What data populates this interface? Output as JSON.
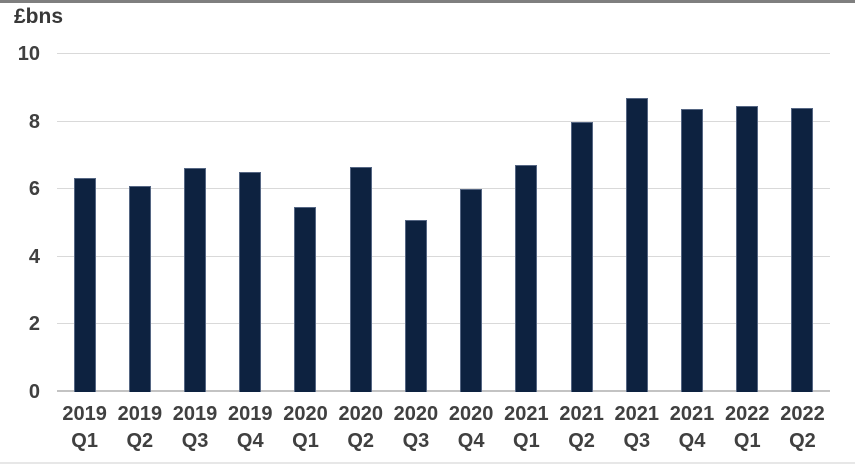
{
  "chart_data": {
    "type": "bar",
    "title": "£bns",
    "ylabel": "£bns",
    "xlabel": "",
    "categories": [
      "2019 Q1",
      "2019 Q2",
      "2019 Q3",
      "2019 Q4",
      "2020 Q1",
      "2020 Q2",
      "2020 Q3",
      "2020 Q4",
      "2021 Q1",
      "2021 Q2",
      "2021 Q3",
      "2021 Q4",
      "2022 Q1",
      "2022 Q2"
    ],
    "values": [
      6.33,
      6.1,
      6.62,
      6.5,
      5.47,
      6.66,
      5.08,
      6.0,
      6.72,
      8.0,
      8.71,
      8.37,
      8.47,
      8.41
    ],
    "ylim": [
      0,
      10
    ],
    "yticks": [
      0,
      2,
      4,
      6,
      8,
      10
    ],
    "grid": true,
    "legend": "none",
    "colors": {
      "bar_fill": "#0d2240",
      "gridline": "#d9d9d9",
      "axis_line": "#c3c3c3",
      "text": "#404040",
      "unit_label_text": "#383838",
      "top_rule": "#7f7f7f",
      "bottom_rule": "#e7e7e7",
      "background": "#ffffff"
    }
  }
}
